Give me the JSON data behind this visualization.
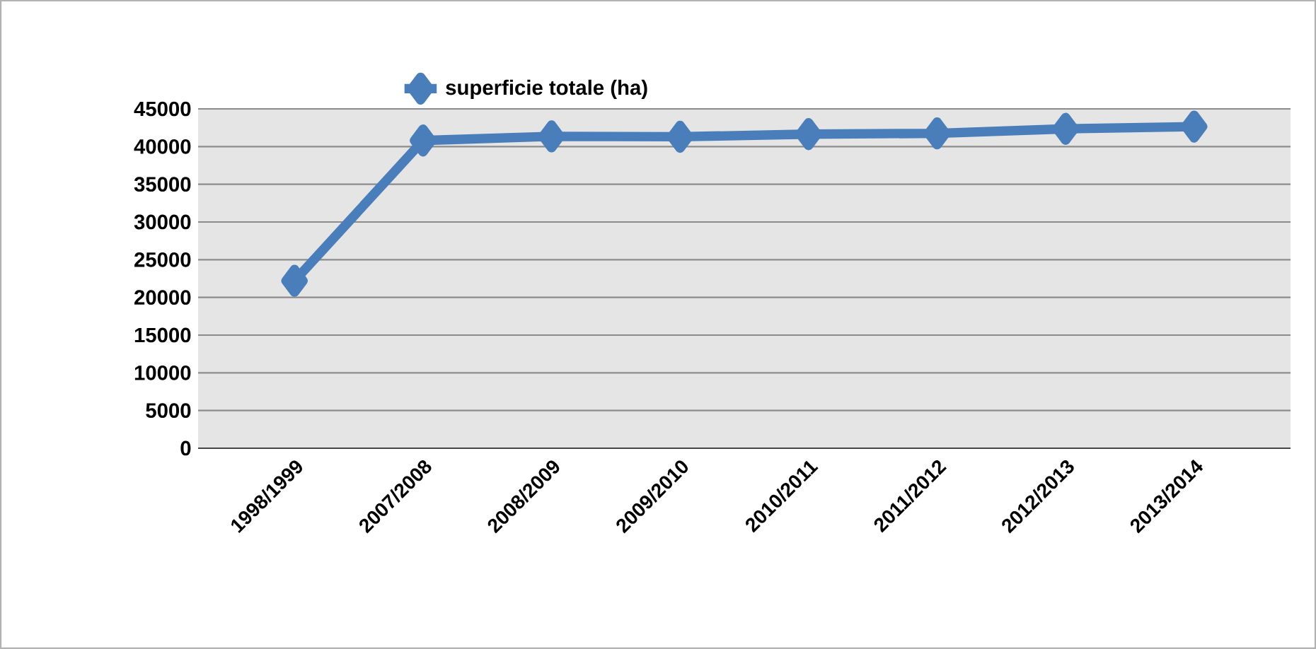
{
  "chart_data": {
    "type": "line",
    "categories": [
      "1998/1999",
      "2007/2008",
      "2008/2009",
      "2009/2010",
      "2010/2011",
      "2011/2012",
      "2012/2013",
      "2013/2014"
    ],
    "series": [
      {
        "name": "superficie totale (ha)",
        "color": "#4a7ebb",
        "values": [
          22200,
          40800,
          41350,
          41300,
          41650,
          41750,
          42350,
          42650
        ]
      }
    ],
    "ylim": [
      0,
      45000
    ],
    "yticks": [
      0,
      5000,
      10000,
      15000,
      20000,
      25000,
      30000,
      35000,
      40000,
      45000
    ],
    "grid": "y",
    "legend": "top",
    "marker": "diamond",
    "line_style": "solid"
  }
}
